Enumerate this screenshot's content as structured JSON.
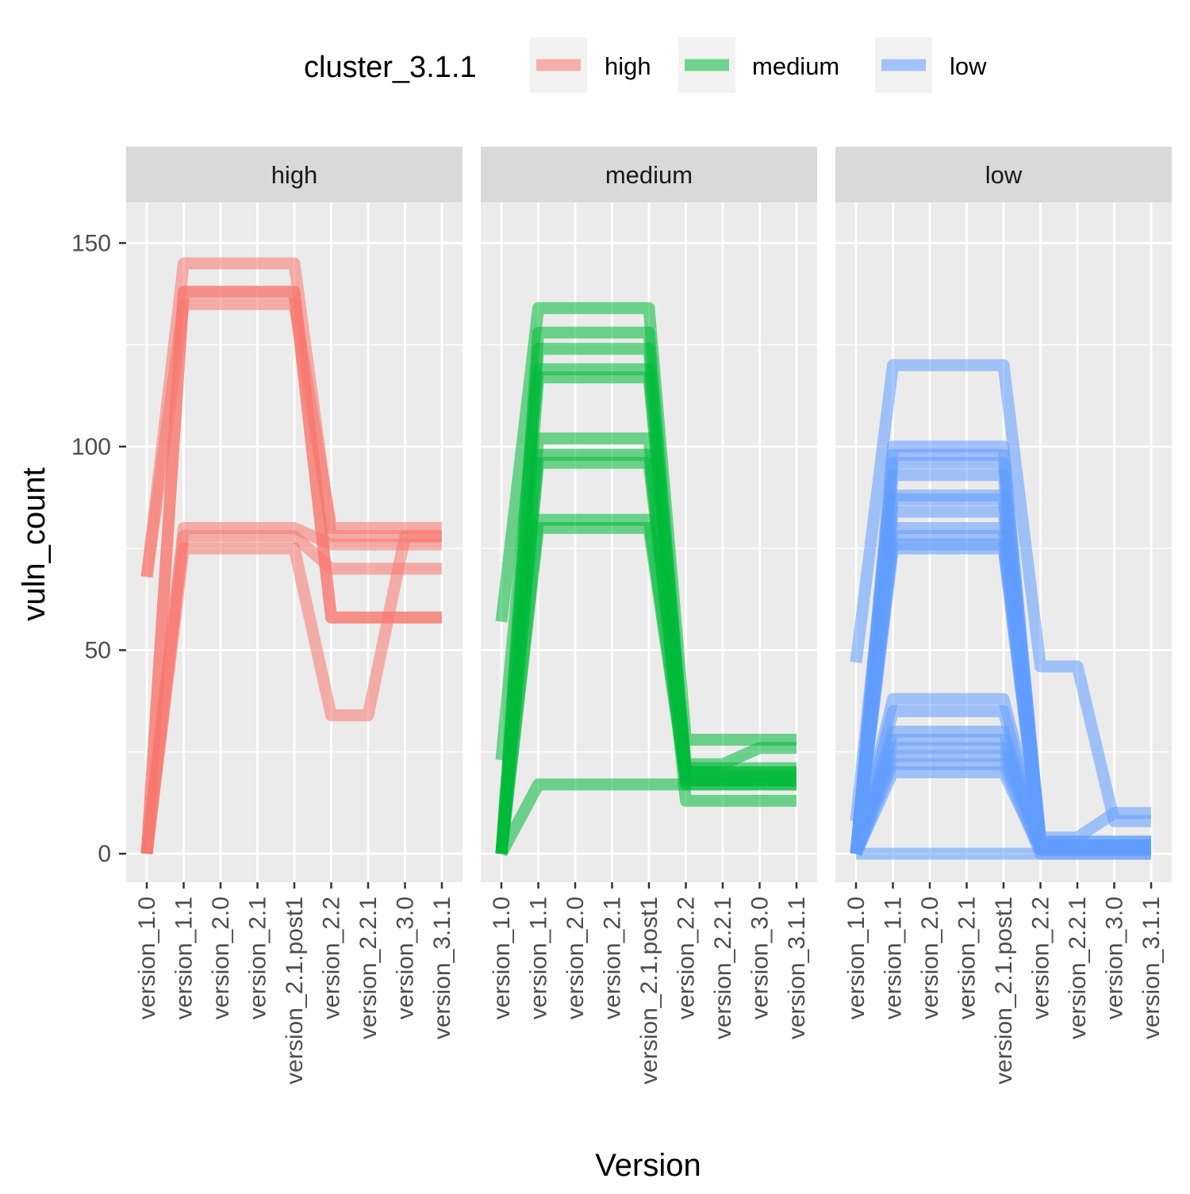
{
  "chart_data": {
    "type": "line",
    "xlabel": "Version",
    "ylabel": "vuln_count",
    "ylim": [
      -7,
      160
    ],
    "yticks": [
      0,
      50,
      100,
      150
    ],
    "grid": true,
    "legend": {
      "title": "cluster_3.1.1",
      "placement": "top",
      "entries": [
        {
          "label": "high",
          "color": "#F8766D"
        },
        {
          "label": "medium",
          "color": "#00BA38"
        },
        {
          "label": "low",
          "color": "#619CFF"
        }
      ]
    },
    "categories": [
      "version_1.0",
      "version_1.1",
      "version_2.0",
      "version_2.1",
      "version_2.1.post1",
      "version_2.2",
      "version_2.2.1",
      "version_3.0",
      "version_3.1.1"
    ],
    "panels": [
      {
        "label": "high",
        "color": "#F8766D",
        "series": [
          {
            "values": [
              68,
              145,
              145,
              145,
              145,
              78,
              78,
              78,
              78
            ]
          },
          {
            "values": [
              68,
              135,
              135,
              135,
              135,
              80,
              80,
              80,
              80
            ]
          },
          {
            "values": [
              0,
              138,
              138,
              138,
              138,
              58,
              58,
              58,
              58
            ]
          },
          {
            "values": [
              0,
              138,
              138,
              138,
              138,
              58,
              58,
              58,
              58
            ]
          },
          {
            "values": [
              0,
              80,
              80,
              80,
              80,
              76,
              76,
              76,
              76
            ]
          },
          {
            "values": [
              0,
              78,
              78,
              78,
              78,
              70,
              70,
              70,
              70
            ]
          },
          {
            "values": [
              0,
              75,
              75,
              75,
              75,
              34,
              34,
              78,
              78
            ]
          }
        ]
      },
      {
        "label": "medium",
        "color": "#00BA38",
        "series": [
          {
            "values": [
              57,
              134,
              134,
              134,
              134,
              28,
              28,
              28,
              28
            ]
          },
          {
            "values": [
              23,
              119,
              119,
              119,
              119,
              22,
              22,
              26,
              26
            ]
          },
          {
            "values": [
              0,
              117,
              117,
              117,
              117,
              20,
              20,
              20,
              20
            ]
          },
          {
            "values": [
              0,
              102,
              102,
              102,
              102,
              13,
              13,
              13,
              13
            ]
          },
          {
            "values": [
              0,
              128,
              128,
              128,
              128,
              20,
              20,
              20,
              20
            ]
          },
          {
            "values": [
              0,
              124,
              124,
              124,
              124,
              18,
              18,
              18,
              18
            ]
          },
          {
            "values": [
              0,
              98,
              98,
              98,
              98,
              21,
              21,
              21,
              21
            ]
          },
          {
            "values": [
              0,
              96,
              96,
              96,
              96,
              17,
              17,
              17,
              17
            ]
          },
          {
            "values": [
              0,
              82,
              82,
              82,
              82,
              19,
              19,
              19,
              19
            ]
          },
          {
            "values": [
              0,
              80,
              80,
              80,
              80,
              18,
              18,
              18,
              18
            ]
          },
          {
            "values": [
              0,
              17,
              17,
              17,
              17,
              17,
              17,
              17,
              17
            ]
          }
        ]
      },
      {
        "label": "low",
        "color": "#619CFF",
        "series": [
          {
            "values": [
              47,
              120,
              120,
              120,
              120,
              46,
              46,
              8,
              8
            ]
          },
          {
            "values": [
              8,
              93,
              93,
              93,
              93,
              4,
              4,
              10,
              10
            ]
          },
          {
            "values": [
              0,
              100,
              100,
              100,
              100,
              2,
              2,
              2,
              2
            ]
          },
          {
            "values": [
              0,
              98,
              98,
              98,
              98,
              3,
              3,
              3,
              3
            ]
          },
          {
            "values": [
              0,
              96,
              96,
              96,
              96,
              1,
              1,
              1,
              1
            ]
          },
          {
            "values": [
              0,
              88,
              88,
              88,
              88,
              2,
              2,
              2,
              2
            ]
          },
          {
            "values": [
              0,
              87,
              87,
              87,
              87,
              3,
              3,
              3,
              3
            ]
          },
          {
            "values": [
              0,
              84,
              84,
              84,
              84,
              1,
              1,
              1,
              1
            ]
          },
          {
            "values": [
              0,
              80,
              80,
              80,
              80,
              2,
              2,
              2,
              2
            ]
          },
          {
            "values": [
              0,
              78,
              78,
              78,
              78,
              1,
              1,
              1,
              1
            ]
          },
          {
            "values": [
              0,
              76,
              76,
              76,
              76,
              2,
              2,
              2,
              2
            ]
          },
          {
            "values": [
              0,
              75,
              75,
              75,
              75,
              1,
              1,
              1,
              1
            ]
          },
          {
            "values": [
              0,
              38,
              38,
              38,
              38,
              2,
              2,
              2,
              2
            ]
          },
          {
            "values": [
              0,
              35,
              35,
              35,
              35,
              1,
              1,
              1,
              1
            ]
          },
          {
            "values": [
              0,
              30,
              30,
              30,
              30,
              2,
              2,
              2,
              2
            ]
          },
          {
            "values": [
              0,
              28,
              28,
              28,
              28,
              1,
              1,
              1,
              1
            ]
          },
          {
            "values": [
              0,
              26,
              26,
              26,
              26,
              2,
              2,
              2,
              2
            ]
          },
          {
            "values": [
              0,
              24,
              24,
              24,
              24,
              1,
              1,
              1,
              1
            ]
          },
          {
            "values": [
              0,
              22,
              22,
              22,
              22,
              0,
              0,
              0,
              0
            ]
          },
          {
            "values": [
              0,
              20,
              20,
              20,
              20,
              1,
              1,
              1,
              1
            ]
          },
          {
            "values": [
              0,
              0,
              0,
              0,
              0,
              0,
              0,
              0,
              0
            ]
          }
        ]
      }
    ]
  }
}
